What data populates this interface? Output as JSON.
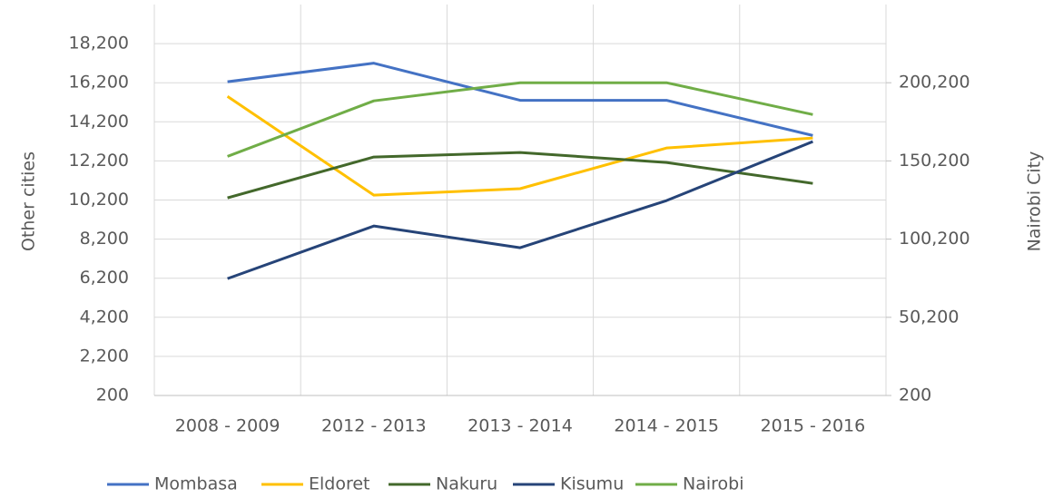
{
  "chart_data": {
    "type": "line",
    "categories": [
      "2008 - 2009",
      "2012 - 2013",
      "2013 - 2014",
      "2014 - 2015",
      "2015 - 2016"
    ],
    "series": [
      {
        "name": "Mombasa",
        "color": "#4472c4",
        "values": [
          16250,
          17200,
          15300,
          15300,
          13500
        ]
      },
      {
        "name": "Eldoret",
        "color": "#ffc000",
        "values": [
          15500,
          10450,
          10780,
          12860,
          13370
        ]
      },
      {
        "name": "Nakuru",
        "color": "#43682b",
        "values": [
          10310,
          12400,
          12630,
          12120,
          11050
        ]
      },
      {
        "name": "Kisumu",
        "color": "#264478",
        "values": [
          6180,
          8870,
          7760,
          10170,
          13190
        ]
      },
      {
        "name": "Nairobi",
        "color": "#70ad47",
        "axis": "y2",
        "values": [
          153100,
          188600,
          200200,
          200200,
          179850
        ]
      }
    ],
    "ylabel": "Other cities",
    "y2label": "Nairobi City",
    "ylim": [
      200,
      20200
    ],
    "yticks": [
      200,
      {
        "value": 2200,
        "label": "2,200"
      },
      {
        "value": 4200,
        "label": "4,200"
      },
      {
        "value": 6200,
        "label": "6,200"
      },
      {
        "value": 8200,
        "label": "8,200"
      },
      {
        "value": 10200,
        "label": "10,200"
      },
      {
        "value": 12200,
        "label": "12,200"
      },
      {
        "value": 14200,
        "label": "14,200"
      },
      {
        "value": 16200,
        "label": "16,200"
      },
      {
        "value": 18200,
        "label": "18,200"
      }
    ],
    "y2lim": [
      200,
      250200
    ],
    "y2ticks": [
      200,
      {
        "value": 50200,
        "label": "50,200"
      },
      {
        "value": 100200,
        "label": "100,200"
      },
      {
        "value": 150200,
        "label": "150,200"
      },
      {
        "value": 200200,
        "label": "200,200"
      }
    ],
    "grid": true,
    "legend": "bottom"
  }
}
